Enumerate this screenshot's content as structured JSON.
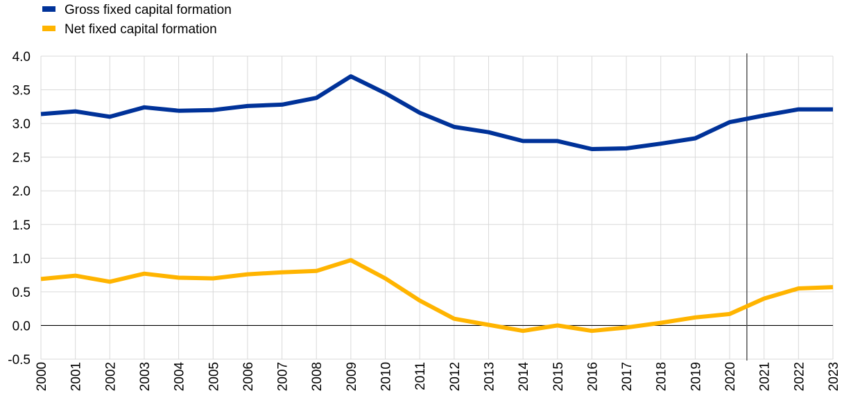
{
  "chart_data": {
    "type": "line",
    "title": "",
    "xlabel": "",
    "ylabel": "",
    "x": [
      "2000",
      "2001",
      "2002",
      "2003",
      "2004",
      "2005",
      "2006",
      "2007",
      "2008",
      "2009",
      "2010",
      "2011",
      "2012",
      "2013",
      "2014",
      "2015",
      "2016",
      "2017",
      "2018",
      "2019",
      "2020",
      "2021",
      "2022",
      "2023"
    ],
    "ylim": [
      -0.5,
      4.0
    ],
    "yticks": [
      "4.0",
      "3.5",
      "3.0",
      "2.5",
      "2.0",
      "1.5",
      "1.0",
      "0.5",
      "0.0",
      "-0.5"
    ],
    "ytick_values": [
      4.0,
      3.5,
      3.0,
      2.5,
      2.0,
      1.5,
      1.0,
      0.5,
      0.0,
      -0.5
    ],
    "grid": true,
    "legend_position": "top-left",
    "vertical_marker_x": 2020.5,
    "series": [
      {
        "name": "Gross fixed capital formation",
        "color": "#003299",
        "values": [
          3.14,
          3.18,
          3.1,
          3.24,
          3.19,
          3.2,
          3.26,
          3.28,
          3.38,
          3.7,
          3.45,
          3.16,
          2.95,
          2.87,
          2.74,
          2.74,
          2.62,
          2.63,
          2.7,
          2.78,
          3.02,
          3.12,
          3.21,
          3.21
        ]
      },
      {
        "name": "Net fixed capital formation",
        "color": "#FFB400",
        "values": [
          0.69,
          0.74,
          0.65,
          0.77,
          0.71,
          0.7,
          0.76,
          0.79,
          0.81,
          0.97,
          0.7,
          0.37,
          0.1,
          0.01,
          -0.08,
          0.0,
          -0.08,
          -0.03,
          0.04,
          0.12,
          0.17,
          0.4,
          0.55,
          0.57
        ]
      }
    ]
  }
}
